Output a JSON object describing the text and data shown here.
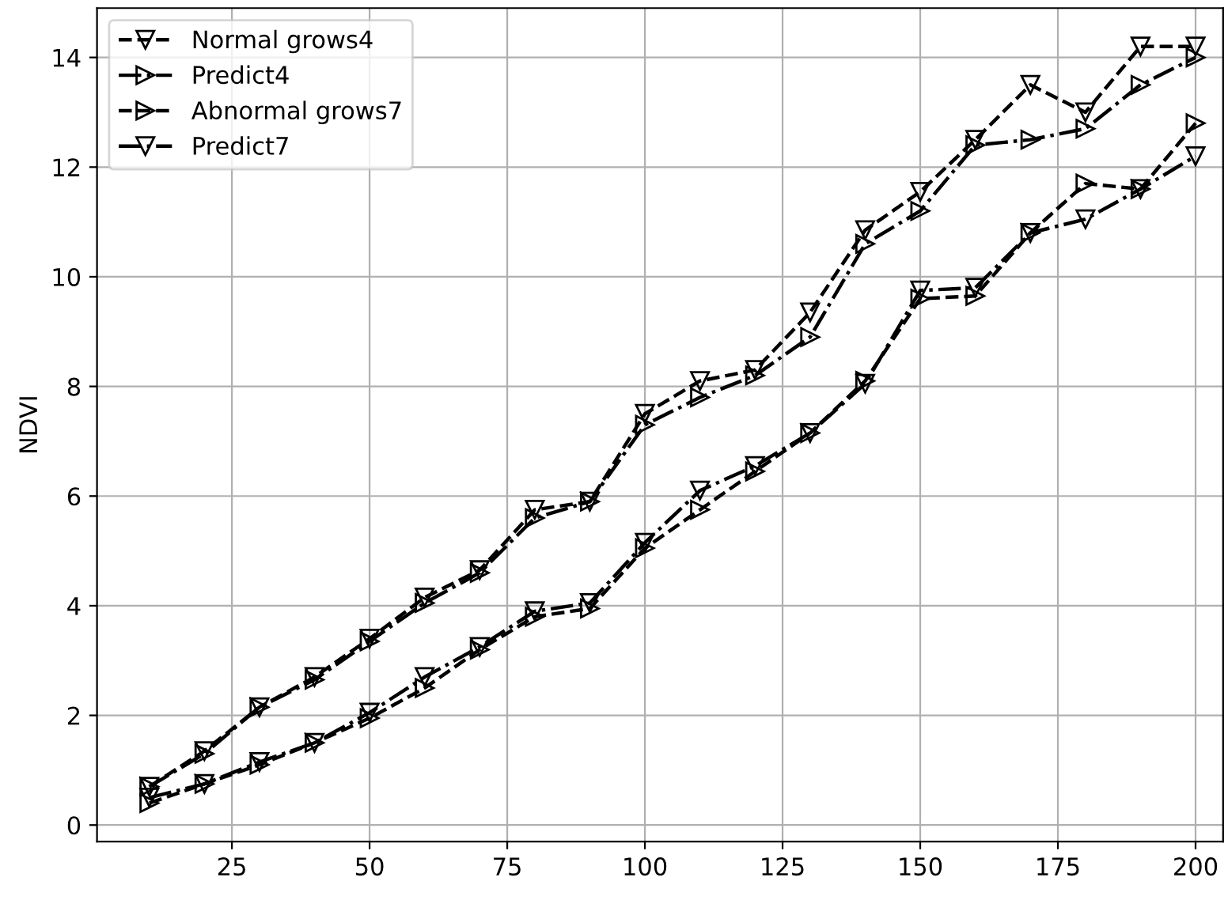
{
  "chart_data": {
    "type": "line",
    "ylabel": "NDVI",
    "x": [
      10,
      20,
      30,
      40,
      50,
      60,
      70,
      80,
      90,
      100,
      110,
      120,
      130,
      140,
      150,
      160,
      170,
      180,
      190,
      200
    ],
    "series": [
      {
        "name": "Normal grows4",
        "color": "#000000",
        "marker": "triangle-down",
        "line_style": "dashed",
        "values": [
          0.7,
          1.35,
          2.15,
          2.7,
          3.4,
          4.15,
          4.65,
          5.75,
          5.9,
          7.5,
          8.1,
          8.3,
          9.35,
          10.85,
          11.55,
          12.5,
          13.5,
          13.0,
          14.2,
          14.2
        ]
      },
      {
        "name": "Predict4",
        "color": "#000000",
        "marker": "triangle-right",
        "line_style": "dashdot",
        "values": [
          0.7,
          1.3,
          2.15,
          2.65,
          3.35,
          4.05,
          4.6,
          5.6,
          5.9,
          7.3,
          7.8,
          8.2,
          8.9,
          10.6,
          11.2,
          12.4,
          12.5,
          12.7,
          13.5,
          14.0
        ]
      },
      {
        "name": "Abnormal grows7",
        "color": "#000000",
        "marker": "triangle-right",
        "line_style": "dashed",
        "values": [
          0.4,
          0.75,
          1.1,
          1.5,
          1.95,
          2.5,
          3.2,
          3.8,
          3.95,
          5.05,
          5.75,
          6.45,
          7.15,
          8.1,
          9.6,
          9.65,
          10.8,
          11.7,
          11.6,
          12.8
        ]
      },
      {
        "name": "Predict7",
        "color": "#000000",
        "marker": "triangle-down",
        "line_style": "dashdot",
        "values": [
          0.5,
          0.75,
          1.15,
          1.5,
          2.05,
          2.7,
          3.25,
          3.9,
          4.05,
          5.15,
          6.1,
          6.55,
          7.15,
          8.05,
          9.75,
          9.8,
          10.8,
          11.05,
          11.6,
          12.2
        ]
      }
    ],
    "xlim": [
      0.5,
      205
    ],
    "xticks": [
      25,
      50,
      75,
      100,
      125,
      150,
      175,
      200
    ],
    "ylim": [
      -0.3,
      14.9
    ],
    "yticks": [
      0,
      2,
      4,
      6,
      8,
      10,
      12,
      14
    ],
    "grid": true,
    "legend": "top left"
  }
}
